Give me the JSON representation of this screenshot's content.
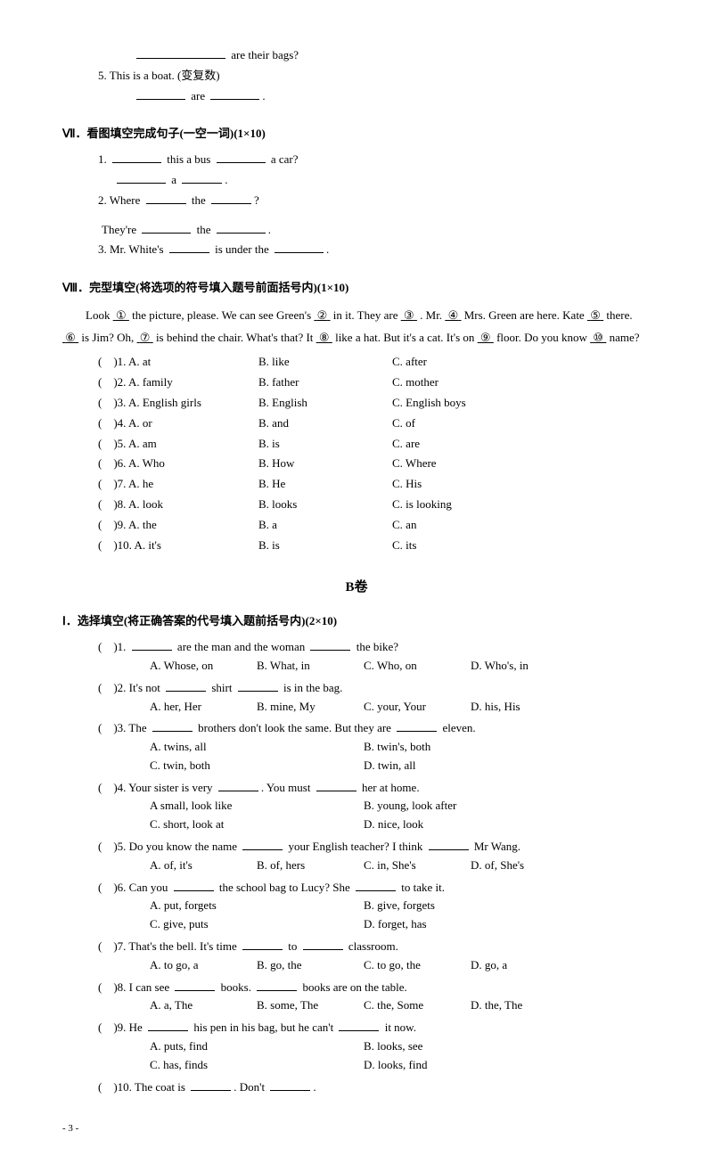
{
  "topFrag": {
    "line1b": " are their bags?",
    "line2": "5. This is a boat. (变复数)",
    "line3b": " are ",
    "line3c": "."
  },
  "sec7": {
    "header": "Ⅶ．看图填空完成句子(一空一词)(1×10)",
    "q1a": "1. ",
    "q1b": " this a bus ",
    "q1c": " a car?",
    "q1d": " a ",
    "q1e": ".",
    "q2a": "2. Where ",
    "q2b": " the ",
    "q2c": "?",
    "q2d": "They're ",
    "q2e": " the ",
    "q2f": ".",
    "q3a": "3. Mr. White's ",
    "q3b": " is under the ",
    "q3c": "."
  },
  "sec8": {
    "header": "Ⅷ．完型填空(将选项的符号填入题号前面括号内)(1×10)",
    "p1a": "Look ",
    "p1b": " the picture, please. We can see Green's ",
    "p1c": " in it. They are ",
    "p1d": " .  Mr. ",
    "p1e": "  Mrs. Green are here.  Kate ",
    "p1f": " there. ",
    "p1g": " is Jim? Oh, ",
    "p1h": " is behind the chair. What's that? It ",
    "p1i": " like a hat. But it's a cat. It's on ",
    "p1j": " floor. Do you know ",
    "p1k": " name?",
    "rows": [
      {
        "n": "(　)1. A. at",
        "b": "B. like",
        "c": "C. after"
      },
      {
        "n": "(　)2. A. family",
        "b": "B. father",
        "c": "C. mother"
      },
      {
        "n": "(　)3. A. English girls",
        "b": "B. English",
        "c": "C. English boys"
      },
      {
        "n": "(　)4. A. or",
        "b": "B. and",
        "c": "C. of"
      },
      {
        "n": "(　)5. A. am",
        "b": "B. is",
        "c": "C. are"
      },
      {
        "n": "(　)6. A. Who",
        "b": "B. How",
        "c": "C. Where"
      },
      {
        "n": "(　)7. A. he",
        "b": "B. He",
        "c": "C. His"
      },
      {
        "n": "(　)8. A. look",
        "b": "B. looks",
        "c": "C. is looking"
      },
      {
        "n": "(　)9. A. the",
        "b": "B. a",
        "c": "C. an"
      },
      {
        "n": "(　)10. A. it's",
        "b": "B. is",
        "c": "C. its"
      }
    ]
  },
  "bTitle": "B卷",
  "secB1": {
    "header": "Ⅰ．选择填空(将正确答案的代号填入题前括号内)(2×10)",
    "items": [
      {
        "q": [
          "(　)1. ",
          " are the man and the woman ",
          " the bike?"
        ],
        "opts": [
          "A. Whose, on",
          "B. What, in",
          "C. Who, on",
          "D. Who's, in"
        ],
        "wide": false
      },
      {
        "q": [
          "(　)2. It's not ",
          " shirt ",
          " is in the bag."
        ],
        "opts": [
          "A. her, Her",
          "B. mine, My",
          "C. your, Your",
          "D. his, His"
        ],
        "wide": false
      },
      {
        "q": [
          "(　)3. The ",
          " brothers don't look the same. But they are ",
          " eleven."
        ],
        "opts": [
          "A. twins, all",
          "B. twin's, both",
          "C. twin, both",
          "D. twin, all"
        ],
        "wide": true
      },
      {
        "q": [
          "(　)4. Your sister is very ",
          ". You must ",
          " her at home."
        ],
        "opts": [
          "A small, look like",
          "B. young, look after",
          "C. short, look at",
          "D. nice, look"
        ],
        "wide": true
      },
      {
        "q": [
          "(　)5. Do you know the name ",
          " your English teacher? I think ",
          " Mr Wang."
        ],
        "opts": [
          "A. of, it's",
          "B. of, hers",
          "C. in, She's",
          "D. of, She's"
        ],
        "wide": false
      },
      {
        "q": [
          "(　)6. Can you ",
          " the school bag to Lucy? She ",
          " to take it."
        ],
        "opts": [
          "A. put, forgets",
          "B. give, forgets",
          "C. give, puts",
          "D. forget, has"
        ],
        "wide": true
      },
      {
        "q": [
          "(　)7. That's the bell. It's time ",
          " to ",
          " classroom."
        ],
        "opts": [
          "A. to go, a",
          "B. go, the",
          "C. to go, the",
          "D. go, a"
        ],
        "wide": false
      },
      {
        "q": [
          "(　)8. I can see ",
          " books. ",
          " books are on the table."
        ],
        "opts": [
          "A. a, The",
          "B. some, The",
          "C. the, Some",
          "D. the, The"
        ],
        "wide": false
      },
      {
        "q": [
          "(　)9. He ",
          " his pen in his bag, but he can't ",
          " it now."
        ],
        "opts": [
          "A. puts, find",
          "B. looks, see",
          "C. has, finds",
          "D. looks, find"
        ],
        "wide": true
      },
      {
        "q": [
          "(　)10. The coat is ",
          ". Don't ",
          "."
        ],
        "opts": [],
        "wide": false
      }
    ]
  },
  "pageNum": "- 3 -",
  "circles": [
    "①",
    "②",
    "③",
    "④",
    "⑤",
    "⑥",
    "⑦",
    "⑧",
    "⑨",
    "⑩"
  ]
}
